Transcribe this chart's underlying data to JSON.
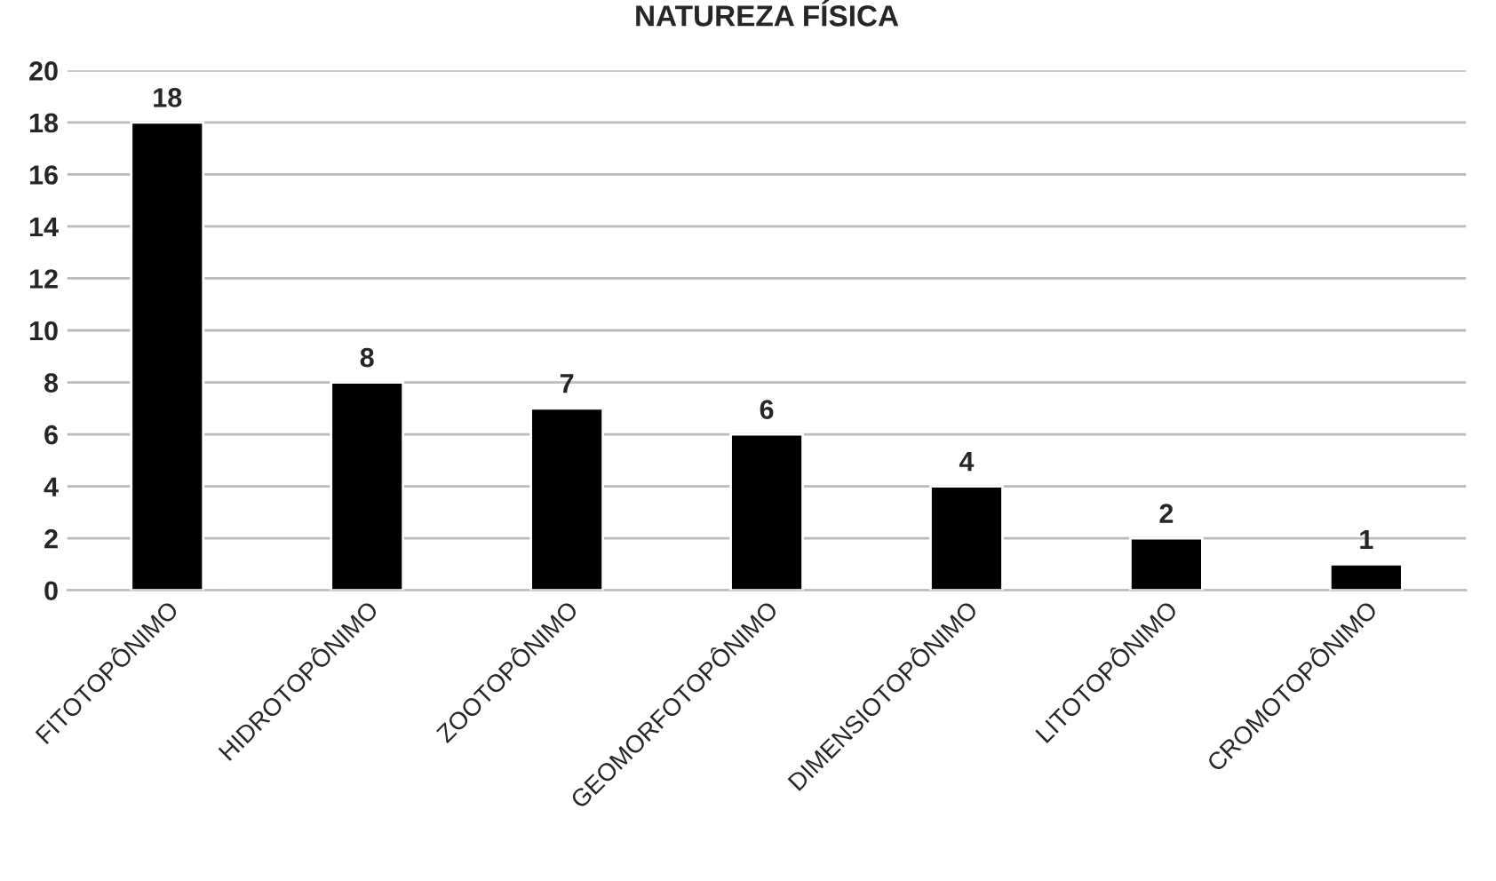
{
  "chart_data": {
    "type": "bar",
    "title": "NATUREZA FÍSICA",
    "categories": [
      "FITOTOPÔNIMO",
      "HIDROTOPÔNIMO",
      "ZOOTOPÔNIMO",
      "GEOMORFOTOPÔNIMO",
      "DIMENSIOTOPÔNIMO",
      "LITOTOPÔNIMO",
      "CROMOTOPÔNIMO"
    ],
    "values": [
      18,
      8,
      7,
      6,
      4,
      2,
      1
    ],
    "data_labels": true,
    "color": "#000000",
    "ylim": [
      0,
      20
    ],
    "yticks": [
      0,
      2,
      4,
      6,
      8,
      10,
      12,
      14,
      16,
      18,
      20
    ],
    "grid": "y",
    "legend": false
  }
}
